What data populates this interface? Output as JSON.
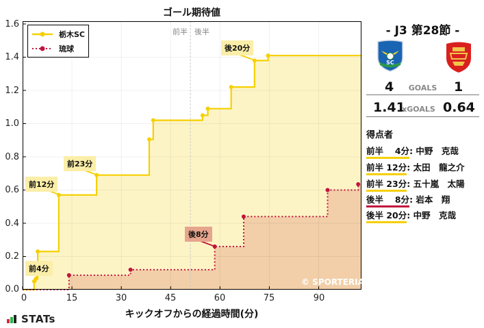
{
  "chart_data": {
    "type": "line",
    "subtype": "step",
    "title": "ゴール期待値",
    "xlabel": "キックオフからの経過時間(分)",
    "ylabel": "",
    "xlim": [
      0,
      103
    ],
    "ylim": [
      0,
      1.6
    ],
    "x_ticks": [
      0,
      15,
      30,
      45,
      60,
      75,
      90
    ],
    "y_ticks": [
      0.0,
      0.2,
      0.4,
      0.6,
      0.8,
      1.0,
      1.2,
      1.4,
      1.6
    ],
    "grid": true,
    "legend_position": "upper left",
    "half_time_marker": {
      "x": 51,
      "labels": [
        "前半",
        "後半"
      ]
    },
    "series": [
      {
        "name": "栃木SC",
        "color": "#f5d000",
        "line_style": "solid",
        "points": [
          {
            "x": 3.5,
            "y": 0.05
          },
          {
            "x": 4,
            "y": 0.065
          },
          {
            "x": 4.6,
            "y": 0.23
          },
          {
            "x": 11,
            "y": 0.57
          },
          {
            "x": 22.5,
            "y": 0.69
          },
          {
            "x": 38.5,
            "y": 0.905
          },
          {
            "x": 39.7,
            "y": 1.02
          },
          {
            "x": 54.7,
            "y": 1.05
          },
          {
            "x": 56.3,
            "y": 1.09
          },
          {
            "x": 63.4,
            "y": 1.22
          },
          {
            "x": 70.5,
            "y": 1.38
          },
          {
            "x": 74.6,
            "y": 1.41
          },
          {
            "x": 103,
            "y": 1.41
          }
        ]
      },
      {
        "name": "琉球",
        "color": "#c0143c",
        "line_style": "dotted",
        "points": [
          {
            "x": 14.1,
            "y": 0.087
          },
          {
            "x": 32.8,
            "y": 0.12
          },
          {
            "x": 58.4,
            "y": 0.26
          },
          {
            "x": 67.2,
            "y": 0.44
          },
          {
            "x": 92.7,
            "y": 0.6
          },
          {
            "x": 102,
            "y": 0.635
          }
        ]
      }
    ],
    "annotations": [
      {
        "text": "前4分",
        "x": 4,
        "y": 0.065,
        "team": "栃木SC"
      },
      {
        "text": "前12分",
        "x": 11,
        "y": 0.57,
        "team": "栃木SC"
      },
      {
        "text": "前23分",
        "x": 22.5,
        "y": 0.69,
        "team": "栃木SC"
      },
      {
        "text": "後8分",
        "x": 58.4,
        "y": 0.26,
        "team": "琉球"
      },
      {
        "text": "後20分",
        "x": 70.5,
        "y": 1.38,
        "team": "栃木SC"
      }
    ],
    "watermark": "© SPORTERIA"
  },
  "page": {
    "title": "ゴール期待値",
    "xlabel": "キックオフからの経過時間(分)",
    "yticks": [
      "1.6",
      "1.4",
      "1.2",
      "1.0",
      "0.8",
      "0.6",
      "0.4",
      "0.2",
      "0.0"
    ],
    "xticks": [
      "0",
      "15",
      "30",
      "45",
      "60",
      "75",
      "90"
    ],
    "legend": {
      "home": "栃木SC",
      "away": "琉球"
    },
    "half": {
      "first": "前半",
      "second": "後半"
    },
    "annotations": {
      "a1": "前4分",
      "a2": "前12分",
      "a3": "前23分",
      "a4": "後8分",
      "a5": "後20分"
    },
    "watermark": "© SPORTERIA",
    "brand": "STATs"
  },
  "match": {
    "round": "- J3 第28節 -",
    "home": {
      "name": "栃木SC",
      "goals": "4",
      "xg": "1.41",
      "crest": "tochigi-sc-crest-icon",
      "color": "#f5d000"
    },
    "away": {
      "name": "琉球",
      "goals": "1",
      "xg": "0.64",
      "crest": "fc-ryukyu-crest-icon",
      "color": "#c0143c"
    },
    "goals_label": "GOALS",
    "xg_label": "xGOALS"
  },
  "scorers": {
    "title": "得点者",
    "list": [
      {
        "time": "前半　 4分",
        "name": "中野　克哉",
        "team": "home"
      },
      {
        "time": "前半 12分",
        "name": "太田　龍之介",
        "team": "home"
      },
      {
        "time": "前半 23分",
        "name": "五十嵐　太陽",
        "team": "home"
      },
      {
        "time": "後半　 8分",
        "name": "岩本　翔",
        "team": "away"
      },
      {
        "time": "後半 20分",
        "name": "中野　克哉",
        "team": "home"
      }
    ]
  }
}
